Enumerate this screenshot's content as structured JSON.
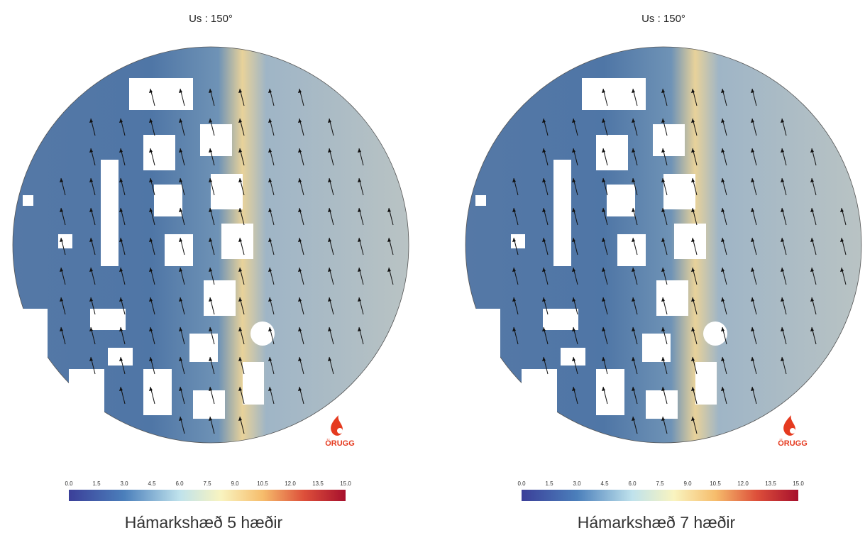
{
  "panels": [
    {
      "title": "Us : 150°",
      "caption": "Hámarkshæð 5 hæðir",
      "logo": "ÖRUGG",
      "colorbar": {
        "ticks": [
          "0.0",
          "1.5",
          "3.0",
          "4.5",
          "6.0",
          "7.5",
          "9.0",
          "10.5",
          "12.0",
          "13.5",
          "15.0"
        ]
      }
    },
    {
      "title": "Us : 150°",
      "caption": "Hámarkshæð 7 hæðir",
      "logo": "ÖRUGG",
      "colorbar": {
        "ticks": [
          "0.0",
          "1.5",
          "3.0",
          "4.5",
          "6.0",
          "7.5",
          "9.0",
          "10.5",
          "12.0",
          "13.5",
          "15.0"
        ]
      }
    }
  ]
}
